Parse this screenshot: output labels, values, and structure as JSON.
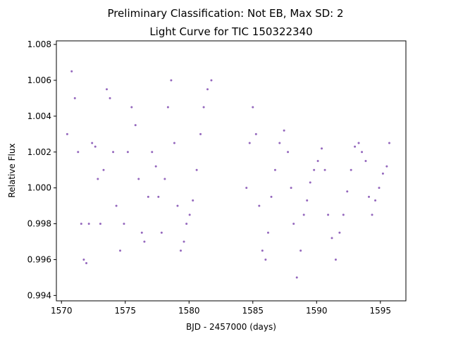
{
  "figure": {
    "suptitle": "Preliminary Classification: Not EB, Max SD: 2"
  },
  "chart_data": {
    "type": "scatter",
    "title": "Light Curve for TIC 150322340",
    "xlabel": "BJD - 2457000 (days)",
    "ylabel": "Relative Flux",
    "xlim": [
      1569.6,
      1597.0
    ],
    "ylim": [
      0.9937,
      1.0082
    ],
    "x_ticks": [
      1570,
      1575,
      1580,
      1585,
      1590,
      1595
    ],
    "x_tick_labels": [
      "1570",
      "1575",
      "1580",
      "1585",
      "1590",
      "1595"
    ],
    "y_ticks": [
      0.994,
      0.996,
      0.998,
      1.0,
      1.002,
      1.004,
      1.006,
      1.008
    ],
    "y_tick_labels": [
      "0.994",
      "0.996",
      "0.998",
      "1.000",
      "1.002",
      "1.004",
      "1.006",
      "1.008"
    ],
    "grid": false,
    "legend": "none",
    "marker_color": "#9467bd",
    "series": [
      {
        "x": [
          1570.45,
          1570.8,
          1571.05,
          1571.3,
          1571.55,
          1571.75,
          1571.95,
          1572.15,
          1572.4,
          1572.65,
          1572.85,
          1573.05,
          1573.3,
          1573.55,
          1573.8,
          1574.05,
          1574.3,
          1574.6,
          1574.9,
          1575.2,
          1575.5,
          1575.8,
          1576.05,
          1576.3,
          1576.5,
          1576.8,
          1577.1,
          1577.4,
          1577.6,
          1577.85,
          1578.1,
          1578.35,
          1578.6,
          1578.85,
          1579.1,
          1579.35,
          1579.6,
          1579.8,
          1580.05,
          1580.3,
          1580.6,
          1580.9,
          1581.15,
          1581.45,
          1581.75,
          1584.5,
          1584.75,
          1585.0,
          1585.25,
          1585.5,
          1585.75,
          1586.0,
          1586.2,
          1586.45,
          1586.75,
          1587.1,
          1587.45,
          1587.75,
          1588.0,
          1588.2,
          1588.45,
          1588.75,
          1589.0,
          1589.25,
          1589.5,
          1589.8,
          1590.1,
          1590.4,
          1590.65,
          1590.9,
          1591.2,
          1591.5,
          1591.8,
          1592.1,
          1592.4,
          1592.7,
          1593.0,
          1593.3,
          1593.55,
          1593.85,
          1594.1,
          1594.35,
          1594.6,
          1594.9,
          1595.2,
          1595.5,
          1595.7
        ],
        "y": [
          1.003,
          1.0065,
          1.005,
          1.002,
          0.998,
          0.996,
          0.9958,
          0.998,
          1.0025,
          1.0023,
          1.0005,
          0.998,
          1.001,
          1.0055,
          1.005,
          1.002,
          0.999,
          0.9965,
          0.998,
          1.002,
          1.0045,
          1.0035,
          1.0005,
          0.9975,
          0.997,
          0.9995,
          1.002,
          1.0012,
          0.9995,
          0.9975,
          1.0005,
          1.0045,
          1.006,
          1.0025,
          0.999,
          0.9965,
          0.997,
          0.998,
          0.9985,
          0.9993,
          1.001,
          1.003,
          1.0045,
          1.0055,
          1.006,
          1.0,
          1.0025,
          1.0045,
          1.003,
          0.999,
          0.9965,
          0.996,
          0.9975,
          0.9995,
          1.001,
          1.0025,
          1.0032,
          1.002,
          1.0,
          0.998,
          0.995,
          0.9965,
          0.9985,
          0.9993,
          1.0003,
          1.001,
          1.0015,
          1.0022,
          1.001,
          0.9985,
          0.9972,
          0.996,
          0.9975,
          0.9985,
          0.9998,
          1.001,
          1.0023,
          1.0025,
          1.002,
          1.0015,
          0.9995,
          0.9985,
          0.9993,
          1.0,
          1.0008,
          1.0012,
          1.0025
        ]
      }
    ]
  }
}
